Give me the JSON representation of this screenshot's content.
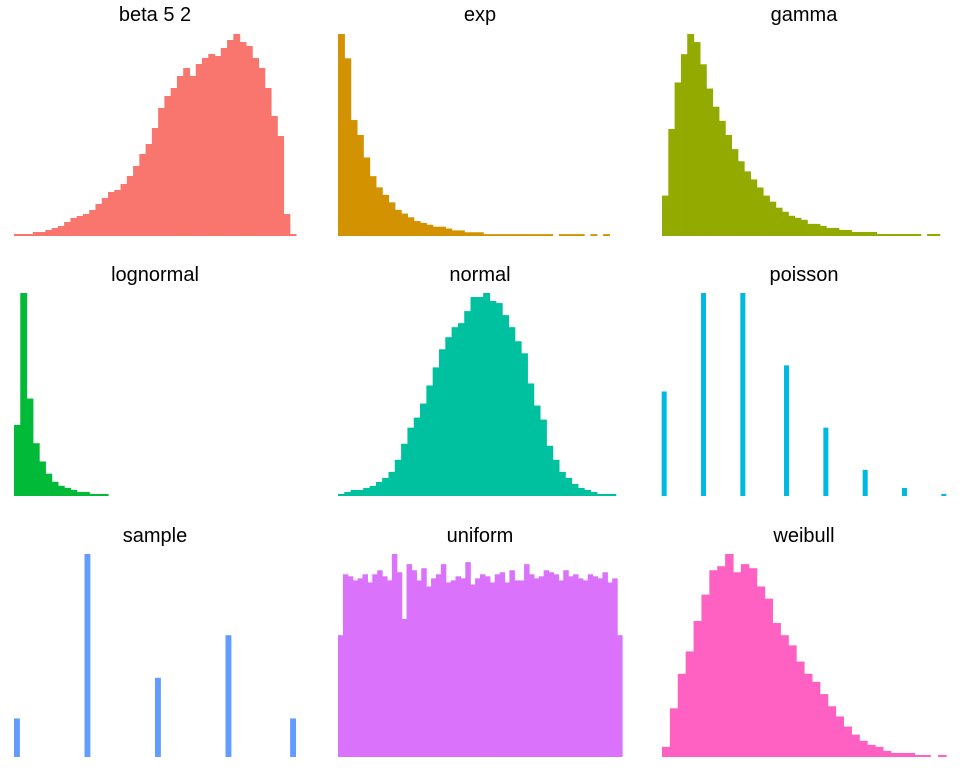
{
  "chart_data": [
    {
      "type": "bar",
      "title": "beta  5  2",
      "color": "#F8766D",
      "values": [
        1,
        1,
        1,
        2,
        2,
        3,
        4,
        5,
        7,
        9,
        10,
        11,
        13,
        16,
        19,
        22,
        23,
        26,
        30,
        35,
        41,
        46,
        54,
        64,
        70,
        74,
        80,
        84,
        80,
        86,
        89,
        91,
        90,
        94,
        98,
        101,
        97,
        95,
        89,
        84,
        74,
        60,
        50,
        11,
        1
      ]
    },
    {
      "type": "bar",
      "title": "exp",
      "color": "#D39200",
      "values": [
        108,
        95,
        62,
        54,
        42,
        32,
        26,
        22,
        18,
        14,
        12,
        10,
        8,
        7,
        6,
        5,
        5,
        4,
        3,
        3,
        2,
        2,
        2,
        1,
        1,
        1,
        1,
        1,
        1,
        1,
        1,
        1,
        1,
        1,
        0,
        1,
        1,
        1,
        1,
        0,
        1,
        0,
        1,
        0,
        0
      ]
    },
    {
      "type": "bar",
      "title": "gamma",
      "color": "#93AA00",
      "values": [
        20,
        53,
        76,
        90,
        100,
        96,
        85,
        73,
        64,
        57,
        50,
        43,
        37,
        32,
        28,
        24,
        20,
        17,
        14,
        12,
        10,
        9,
        8,
        6,
        6,
        5,
        4,
        4,
        3,
        3,
        2,
        2,
        2,
        2,
        1,
        1,
        1,
        1,
        1,
        1,
        1,
        0,
        1,
        1,
        0
      ]
    },
    {
      "type": "bar",
      "title": "lognormal",
      "color": "#00BA38",
      "values": [
        35,
        100,
        48,
        26,
        17,
        11,
        7,
        5,
        4,
        3,
        2,
        2,
        1,
        1,
        1,
        0,
        0,
        0,
        0,
        0,
        0,
        0,
        0,
        0,
        0,
        0,
        0,
        0,
        0,
        0,
        0,
        0,
        0,
        0,
        0,
        0,
        0,
        0,
        0,
        0,
        0,
        0,
        0,
        0,
        0
      ]
    },
    {
      "type": "bar",
      "title": "normal",
      "color": "#00C19F",
      "values": [
        1,
        2,
        3,
        3,
        4,
        5,
        7,
        9,
        12,
        18,
        26,
        34,
        39,
        46,
        55,
        64,
        73,
        79,
        84,
        86,
        92,
        99,
        99,
        101,
        97,
        96,
        90,
        84,
        77,
        71,
        56,
        45,
        38,
        25,
        18,
        12,
        9,
        6,
        4,
        3,
        2,
        1,
        1,
        1,
        0
      ]
    },
    {
      "type": "bar",
      "title": "poisson",
      "color": "#00B9E3",
      "values": [
        52,
        0,
        0,
        0,
        0,
        0,
        0,
        0,
        0,
        101,
        0,
        0,
        0,
        0,
        0,
        0,
        0,
        0,
        101,
        0,
        0,
        0,
        0,
        0,
        0,
        0,
        0,
        0,
        65,
        0,
        0,
        0,
        0,
        0,
        0,
        0,
        0,
        34,
        0,
        0,
        0,
        0,
        0,
        0,
        0,
        0,
        13,
        0,
        0,
        0,
        0,
        0,
        0,
        0,
        0,
        4,
        0,
        0,
        0,
        0,
        0,
        0,
        0,
        0,
        1
      ]
    },
    {
      "type": "bar",
      "title": "sample",
      "color": "#619CFF",
      "values": [
        19,
        0,
        0,
        0,
        0,
        0,
        0,
        0,
        0,
        0,
        0,
        0,
        100,
        0,
        0,
        0,
        0,
        0,
        0,
        0,
        0,
        0,
        0,
        0,
        39,
        0,
        0,
        0,
        0,
        0,
        0,
        0,
        0,
        0,
        0,
        0,
        60,
        0,
        0,
        0,
        0,
        0,
        0,
        0,
        0,
        0,
        0,
        19
      ]
    },
    {
      "type": "bar",
      "title": "uniform",
      "color": "#DB72FB",
      "values": [
        60,
        90,
        89,
        87,
        88,
        90,
        86,
        90,
        92,
        89,
        87,
        100,
        91,
        68,
        95,
        92,
        87,
        93,
        84,
        88,
        90,
        95,
        86,
        87,
        89,
        88,
        96,
        85,
        88,
        90,
        89,
        86,
        90,
        91,
        86,
        92,
        87,
        87,
        95,
        90,
        88,
        89,
        92,
        91,
        90,
        87,
        92,
        89,
        90,
        88,
        87,
        90,
        89,
        88,
        91,
        86,
        88,
        60
      ]
    },
    {
      "type": "bar",
      "title": "weibull",
      "color": "#FF61C3",
      "values": [
        5,
        24,
        41,
        52,
        67,
        80,
        92,
        94,
        100,
        91,
        95,
        93,
        84,
        78,
        66,
        60,
        55,
        47,
        41,
        37,
        31,
        25,
        20,
        15,
        11,
        8,
        6,
        5,
        3,
        2,
        2,
        2,
        1,
        1,
        0,
        1
      ]
    }
  ]
}
